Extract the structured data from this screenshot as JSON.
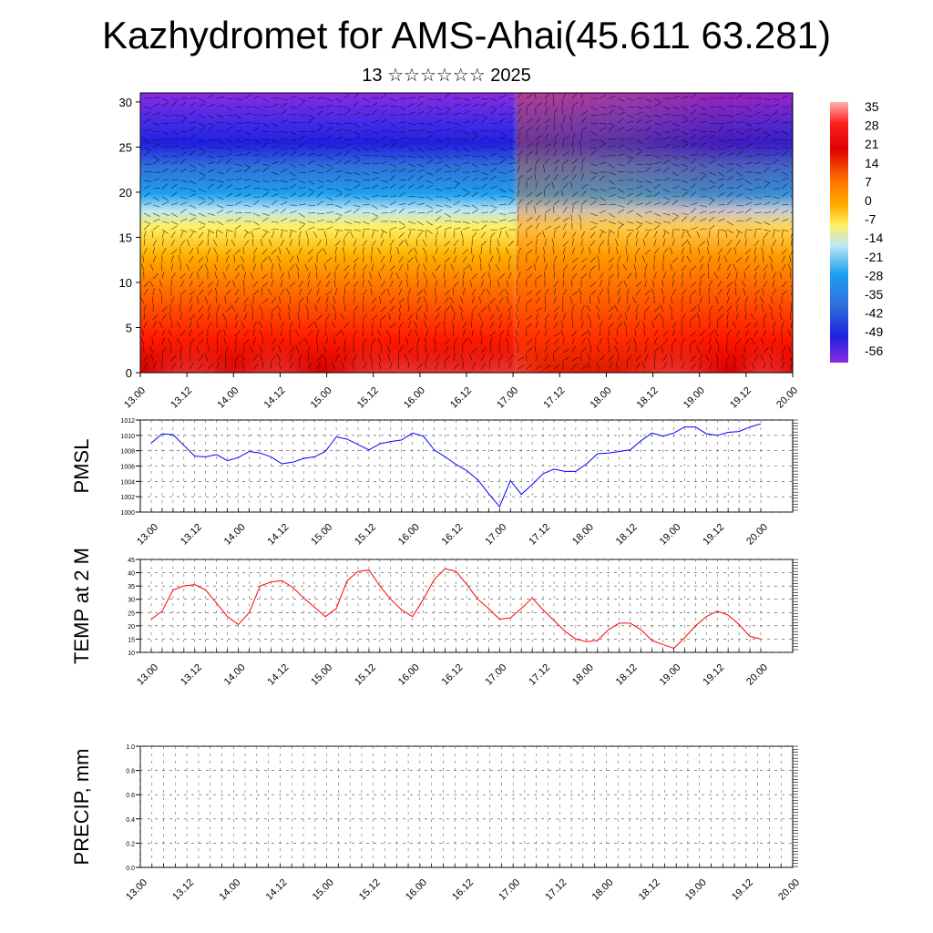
{
  "header": {
    "title": "Kazhydromet for AMS-Ahai(45.611 63.281)",
    "subtitle": "13 ☆☆☆☆☆☆ 2025"
  },
  "colors": {
    "pmsl_line": "#0000ff",
    "temp_line": "#ff0000",
    "precip_line": "#000000",
    "cross_section_palette": [
      "#8a2be2",
      "#2020e0",
      "#2f6fdc",
      "#1ea0f0",
      "#bfe6f5",
      "#fff060",
      "#ffb000",
      "#ff7000",
      "#ff1a00",
      "#e00000",
      "#ff9a9a"
    ]
  },
  "chart_data": [
    {
      "type": "heatmap",
      "title": "",
      "xlabel": "",
      "ylabel": "",
      "ylim": [
        0,
        31
      ],
      "yticks": [
        "0",
        "5",
        "10",
        "15",
        "20",
        "25",
        "30"
      ],
      "xticks": [
        "13.00",
        "13.12",
        "14.00",
        "14.12",
        "15.00",
        "15.12",
        "16.00",
        "16.12",
        "17.00",
        "17.12",
        "18.00",
        "18.12",
        "19.00",
        "19.12",
        "20.00"
      ],
      "colorbar_labels": [
        "35",
        "28",
        "21",
        "14",
        "7",
        "0",
        "-7",
        "-14",
        "-21",
        "-28",
        "-35",
        "-42",
        "-49",
        "-56"
      ],
      "overlay": "wind-barbs"
    },
    {
      "type": "line",
      "ylabel": "PMSL",
      "ylim": [
        1000,
        1012
      ],
      "yticks": [
        "1000",
        "1002",
        "1004",
        "1006",
        "1008",
        "1010",
        "1012"
      ],
      "xticks": [
        "13.00",
        "13.12",
        "14.00",
        "14.12",
        "15.00",
        "15.12",
        "16.00",
        "16.12",
        "17.00",
        "17.12",
        "18.00",
        "18.12",
        "19.00",
        "19.12",
        "20.00"
      ],
      "series": [
        {
          "values": [
            1009.0,
            1010.2,
            1010.1,
            1008.7,
            1007.3,
            1007.2,
            1007.5,
            1006.7,
            1007.1,
            1007.9,
            1007.7,
            1007.2,
            1006.3,
            1006.5,
            1007.0,
            1007.2,
            1007.9,
            1009.8,
            1009.5,
            1008.8,
            1008.1,
            1008.9,
            1009.2,
            1009.4,
            1010.3,
            1009.9,
            1008.1,
            1007.2,
            1006.2,
            1005.4,
            1004.2,
            1002.4,
            1000.7,
            1004.1,
            1002.3,
            1003.6,
            1005.0,
            1005.6,
            1005.3,
            1005.3,
            1006.3,
            1007.6,
            1007.7,
            1007.9,
            1008.1,
            1009.3,
            1010.3,
            1009.9,
            1010.3,
            1011.1,
            1011.1,
            1010.2,
            1010.0,
            1010.4,
            1010.5,
            1011.1,
            1011.5
          ]
        }
      ]
    },
    {
      "type": "line",
      "ylabel": "TEMP at 2 M",
      "ylim": [
        10,
        45
      ],
      "yticks": [
        "10",
        "15",
        "20",
        "25",
        "30",
        "35",
        "40",
        "45"
      ],
      "xticks": [
        "13.00",
        "13.12",
        "14.00",
        "14.12",
        "15.00",
        "15.12",
        "16.00",
        "16.12",
        "17.00",
        "17.12",
        "18.00",
        "18.12",
        "19.00",
        "19.12",
        "20.00"
      ],
      "series": [
        {
          "values": [
            22.5,
            25.5,
            33.5,
            35.0,
            35.5,
            33.5,
            28.5,
            23.5,
            20.5,
            25.0,
            35.0,
            36.5,
            37.0,
            34.5,
            30.5,
            27.0,
            23.5,
            26.5,
            37.0,
            40.5,
            41.0,
            35.0,
            30.0,
            26.0,
            23.5,
            30.0,
            37.5,
            41.5,
            40.5,
            35.5,
            30.0,
            26.5,
            22.5,
            23.0,
            26.5,
            30.5,
            26.0,
            22.0,
            18.0,
            15.0,
            14.0,
            14.5,
            18.5,
            21.0,
            21.0,
            18.5,
            14.5,
            13.0,
            11.5,
            15.5,
            20.0,
            23.5,
            25.5,
            24.0,
            20.5,
            16.0,
            15.0
          ]
        }
      ]
    },
    {
      "type": "line",
      "ylabel": "PRECIP, mm",
      "ylim": [
        0.0,
        1.0
      ],
      "yticks": [
        "0.0",
        "0.2",
        "0.4",
        "0.6",
        "0.8",
        "1.0"
      ],
      "xticks": [
        "13.00",
        "13.12",
        "14.00",
        "14.12",
        "15.00",
        "15.12",
        "16.00",
        "16.12",
        "17.00",
        "17.12",
        "18.00",
        "18.12",
        "19.00",
        "19.12",
        "20.00"
      ],
      "series": [
        {
          "values": [
            0,
            0,
            0,
            0,
            0,
            0,
            0,
            0,
            0,
            0,
            0,
            0,
            0,
            0,
            0,
            0,
            0,
            0,
            0,
            0,
            0,
            0,
            0,
            0,
            0,
            0,
            0,
            0,
            0,
            0,
            0,
            0,
            0,
            0,
            0,
            0,
            0,
            0,
            0,
            0,
            0,
            0,
            0,
            0,
            0,
            0,
            0,
            0,
            0,
            0,
            0,
            0,
            0,
            0,
            0,
            0,
            0
          ]
        }
      ]
    }
  ]
}
